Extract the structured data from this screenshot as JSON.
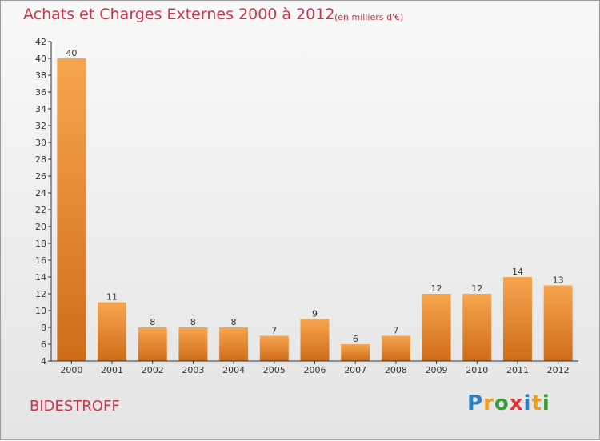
{
  "header": {
    "title": "Achats et Charges Externes 2000 à 2012",
    "subtitle": "(en milliers d'€)"
  },
  "place": "BIDESTROFF",
  "logo": {
    "text": "Proxiti",
    "letter_colors": [
      "#2f7ec4",
      "#e8a020",
      "#3a9c3a",
      "#d93636",
      "#2f7ec4",
      "#e8a020",
      "#3a9c3a"
    ]
  },
  "colors": {
    "title": "#c8364b",
    "bar_top": "#f7a54f",
    "bar_bottom": "#cf6c18",
    "axis": "#333333"
  },
  "chart_data": {
    "type": "bar",
    "title": "Achats et Charges Externes 2000 à 2012",
    "categories": [
      "2000",
      "2001",
      "2002",
      "2003",
      "2004",
      "2005",
      "2006",
      "2007",
      "2008",
      "2009",
      "2010",
      "2011",
      "2012"
    ],
    "values": [
      40,
      11,
      8,
      8,
      8,
      7,
      9,
      6,
      7,
      12,
      12,
      14,
      13
    ],
    "ylim": [
      4,
      42
    ],
    "yticks": [
      4,
      6,
      8,
      10,
      12,
      14,
      16,
      18,
      20,
      22,
      24,
      26,
      28,
      30,
      32,
      34,
      36,
      38,
      40,
      42
    ],
    "xlabel": "",
    "ylabel": "",
    "grid": false,
    "legend": "none"
  }
}
